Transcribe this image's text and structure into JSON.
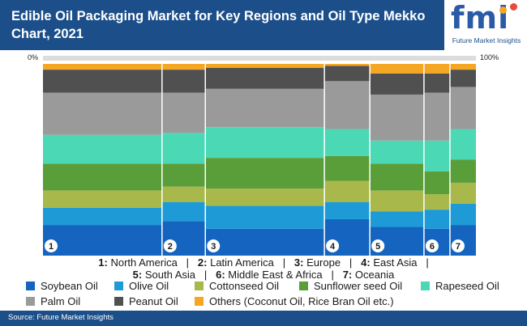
{
  "title": "Edible Oil Packaging Market for Key Regions and Oil Type Mekko Chart, 2021",
  "logo": {
    "text": "fmi",
    "tagline": "Future Market Insights"
  },
  "source": "Source: Future Market Insights",
  "chart_data": {
    "type": "bar",
    "subtype": "mekko (100% stacked, variable-width columns)",
    "x_scale": {
      "start_label": "0%",
      "end_label": "100%"
    },
    "region_key": [
      {
        "num": "1",
        "name": "North America"
      },
      {
        "num": "2",
        "name": "Latin America"
      },
      {
        "num": "3",
        "name": "Europe"
      },
      {
        "num": "4",
        "name": "East Asia"
      },
      {
        "num": "5",
        "name": "South Asia"
      },
      {
        "num": "6",
        "name": "Middle East & Africa"
      },
      {
        "num": "7",
        "name": "Oceania"
      }
    ],
    "categories": [
      "1",
      "2",
      "3",
      "4",
      "5",
      "6",
      "7"
    ],
    "widths": [
      27.5,
      10.0,
      27.5,
      10.5,
      12.5,
      6.0,
      6.0
    ],
    "series": [
      {
        "name": "Soybean Oil",
        "color": "#1565c0",
        "values": [
          16,
          18,
          14,
          19,
          15,
          14,
          16
        ]
      },
      {
        "name": "Olive Oil",
        "color": "#1e9bd7",
        "values": [
          9,
          10,
          12,
          9,
          8,
          10,
          11
        ]
      },
      {
        "name": "Cottonseed Oil",
        "color": "#a9b84a",
        "values": [
          9,
          8,
          9,
          11,
          11,
          8,
          11
        ]
      },
      {
        "name": "Sunflower seed Oil",
        "color": "#5a9e3a",
        "values": [
          14,
          12,
          16,
          13,
          14,
          12,
          12
        ]
      },
      {
        "name": "Rapeseed Oil",
        "color": "#4ad8b5",
        "values": [
          15,
          16,
          16,
          14,
          12,
          16,
          16
        ]
      },
      {
        "name": "Palm Oil",
        "color": "#9a9a9a",
        "values": [
          22,
          21,
          20,
          25,
          24,
          25,
          22
        ]
      },
      {
        "name": "Peanut Oil",
        "color": "#505050",
        "values": [
          12,
          12,
          11,
          8,
          11,
          10,
          9
        ]
      },
      {
        "name": "Others (Coconut Oil, Rice Bran Oil etc.)",
        "color": "#f5a623",
        "values": [
          3,
          3,
          2,
          1,
          5,
          5,
          3
        ]
      }
    ],
    "ylim": [
      0,
      100
    ],
    "grid": false,
    "legend_position": "bottom"
  }
}
